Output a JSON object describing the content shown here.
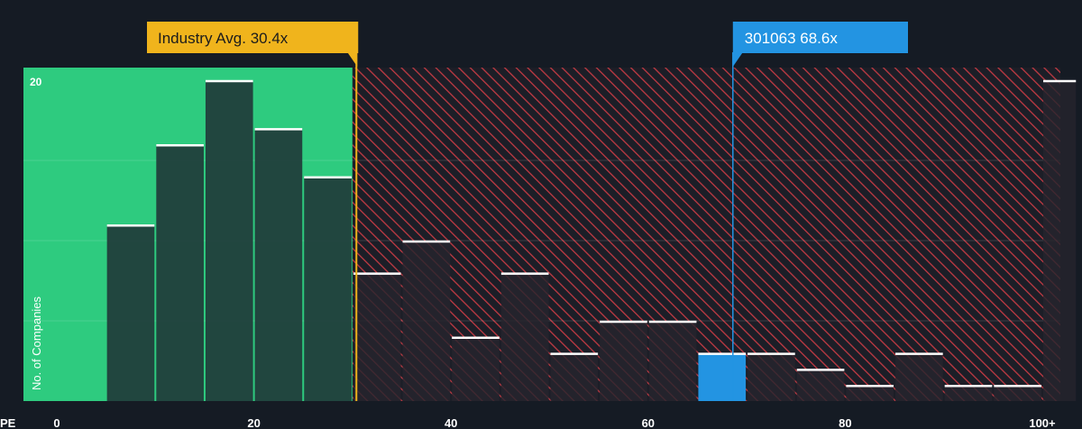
{
  "chart_data": {
    "type": "bar",
    "xlabel": "PE",
    "ylabel": "No. of Companies",
    "x_ticks": [
      "0",
      "20",
      "40",
      "60",
      "80",
      "100+"
    ],
    "x_tick_values": [
      0,
      20,
      40,
      60,
      80,
      100
    ],
    "xlim": [
      0,
      103.5
    ],
    "y_ticks": [
      "20"
    ],
    "y_tick_values": [
      20
    ],
    "ylim": [
      0,
      20.6
    ],
    "bins": [
      {
        "start": 5,
        "end": 10,
        "value": 11
      },
      {
        "start": 10,
        "end": 15,
        "value": 16
      },
      {
        "start": 15,
        "end": 20,
        "value": 20
      },
      {
        "start": 20,
        "end": 25,
        "value": 17
      },
      {
        "start": 25,
        "end": 30,
        "value": 14
      },
      {
        "start": 30,
        "end": 35,
        "value": 8
      },
      {
        "start": 35,
        "end": 40,
        "value": 10
      },
      {
        "start": 40,
        "end": 45,
        "value": 4
      },
      {
        "start": 45,
        "end": 50,
        "value": 8
      },
      {
        "start": 50,
        "end": 55,
        "value": 3
      },
      {
        "start": 55,
        "end": 60,
        "value": 5
      },
      {
        "start": 60,
        "end": 65,
        "value": 5
      },
      {
        "start": 65,
        "end": 70,
        "value": 3,
        "highlight": true
      },
      {
        "start": 70,
        "end": 75,
        "value": 3
      },
      {
        "start": 75,
        "end": 80,
        "value": 2
      },
      {
        "start": 80,
        "end": 85,
        "value": 1
      },
      {
        "start": 85,
        "end": 90,
        "value": 3
      },
      {
        "start": 90,
        "end": 95,
        "value": 1
      },
      {
        "start": 95,
        "end": 100,
        "value": 1
      },
      {
        "start": 100,
        "end": 103.5,
        "value": 20
      }
    ],
    "industry_avg": {
      "label": "Industry Avg. 30.4x",
      "value": 30.4
    },
    "company": {
      "label": "301063 68.6x",
      "value": 68.6
    },
    "colors": {
      "background": "#151b24",
      "below_avg": "#2ecb7f",
      "above_avg": "#e0434a",
      "bar": "#213b3a",
      "bar_above": "#26252d",
      "bar_top": "#ffffff",
      "avg_marker": "#f0b41c",
      "company_marker": "#2394e2"
    }
  }
}
